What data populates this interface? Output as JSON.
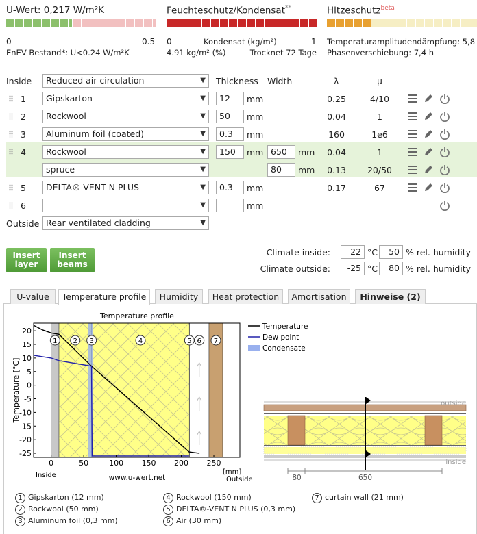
{
  "u_value": {
    "title": "U-Wert:",
    "value": "0,217 W/m²K",
    "scale_min": "0",
    "scale_max": "0.5",
    "note": "EnEV Bestand*: U<0.24 W/m²K"
  },
  "moisture": {
    "title": "Feuchteschutz/Kondensat",
    "sup": "**",
    "scale_min": "0",
    "scale_label": "Kondensat (kg/m²)",
    "scale_max": "1",
    "amount": "4.91 kg/m² (%)",
    "drying": "Trocknet 72 Tage"
  },
  "heat": {
    "title": "Hitzeschutz",
    "sup": "beta",
    "damping": "Temperaturamplitudendämpfung: 5,8",
    "phase": "Phasenverschiebung: 7,4 h"
  },
  "table": {
    "inside_label": "Inside",
    "inside_surface": "Reduced air circulation",
    "headers": {
      "thickness": "Thickness",
      "width": "Width",
      "lambda": "λ",
      "mu": "μ"
    },
    "unit": "mm",
    "rows": [
      {
        "number": "1",
        "material": "Gipskarton",
        "thickness": "12",
        "lambda": "0.25",
        "mu": "4/10"
      },
      {
        "number": "2",
        "material": "Rockwool",
        "thickness": "50",
        "lambda": "0.04",
        "mu": "1"
      },
      {
        "number": "3",
        "material": "Aluminum foil (coated)",
        "thickness": "0.3",
        "lambda": "160",
        "mu": "1e6"
      },
      {
        "number": "4",
        "material": "Rockwool",
        "thickness": "150",
        "width": "650",
        "lambda": "0.04",
        "mu": "1"
      },
      {
        "material": "spruce",
        "width": "80",
        "lambda": "0.13",
        "mu": "20/50"
      },
      {
        "number": "5",
        "material": "DELTA®-VENT N PLUS",
        "thickness": "0.3",
        "lambda": "0.17",
        "mu": "67"
      },
      {
        "number": "6"
      }
    ],
    "outside_label": "Outside",
    "outside_surface": "Rear ventilated cladding"
  },
  "buttons": [
    "Insert layer",
    "Insert beams"
  ],
  "climate": {
    "inside_label": "Climate inside:",
    "inside_temp": "22",
    "inside_rh": "50",
    "outside_label": "Climate outside:",
    "outside_temp": "-25",
    "outside_rh": "80",
    "temp_unit": "°C",
    "rh_unit": "% rel. humidity"
  },
  "tabs": [
    "U-value",
    "Temperature profile",
    "Humidity",
    "Heat protection",
    "Amortisation",
    "Hinweise (2)"
  ],
  "chart_data": {
    "type": "line",
    "title": "Temperature profile",
    "y_label": "Temperature [°C]",
    "x_unit": "[mm]",
    "inside_label": "Inside",
    "outside_label": "Outside",
    "source": "www.u-wert.net",
    "xlim": [
      -27,
      290
    ],
    "ylim": [
      -26.5,
      22.8
    ],
    "xticks": [
      0,
      50,
      100,
      150,
      200,
      250
    ],
    "yticks": [
      20,
      15,
      10,
      5,
      0,
      -5,
      -10,
      -15,
      -20,
      -25
    ],
    "layers": [
      {
        "label": "1",
        "x": [
          0,
          12
        ],
        "color": "#c8c8c8"
      },
      {
        "label": "2",
        "x": [
          12,
          62
        ],
        "color": "#ffff88",
        "texture": "insulation"
      },
      {
        "label": "3",
        "x": [
          62,
          62.3
        ],
        "color": "#8899cc"
      },
      {
        "label": "4",
        "x": [
          62.3,
          212.3
        ],
        "color": "#ffff88",
        "texture": "insulation"
      },
      {
        "label": "5",
        "x": [
          212.3,
          212.6
        ],
        "color": "#444444"
      },
      {
        "label": "6",
        "x": [
          212.6,
          242.6
        ],
        "color": "#ffffff"
      },
      {
        "label": "7",
        "x": [
          242.6,
          263.6
        ],
        "color": "#c8a070"
      }
    ],
    "series": [
      {
        "name": "Temperature",
        "color": "#000000",
        "x": [
          -27,
          -13,
          0,
          12,
          62,
          212,
          228
        ],
        "values": [
          22,
          20.3,
          19.2,
          18.7,
          7,
          -24.5,
          -25
        ]
      },
      {
        "name": "Dew point",
        "color": "#2222aa",
        "x": [
          -27,
          0,
          12,
          62,
          63,
          212
        ],
        "values": [
          11,
          10,
          9,
          7,
          -26,
          -26
        ]
      },
      {
        "name": "Condensate",
        "color": "#99b0ee",
        "x": [
          57,
          64
        ]
      }
    ]
  },
  "diagram": {
    "outside": "outside",
    "inside": "inside",
    "dim_beam": "80",
    "dim_spacing": "650"
  },
  "layer_legend": [
    {
      "number": "1",
      "text": "Gipskarton (12 mm)"
    },
    {
      "number": "2",
      "text": "Rockwool (50 mm)"
    },
    {
      "number": "3",
      "text": "Aluminum foil (0,3 mm)"
    },
    {
      "number": "4",
      "text": "Rockwool (150 mm)"
    },
    {
      "number": "5",
      "text": "DELTA®-VENT N PLUS (0,3 mm)"
    },
    {
      "number": "6",
      "text": "Air (30 mm)"
    },
    {
      "number": "7",
      "text": "curtain wall (21 mm)"
    }
  ]
}
